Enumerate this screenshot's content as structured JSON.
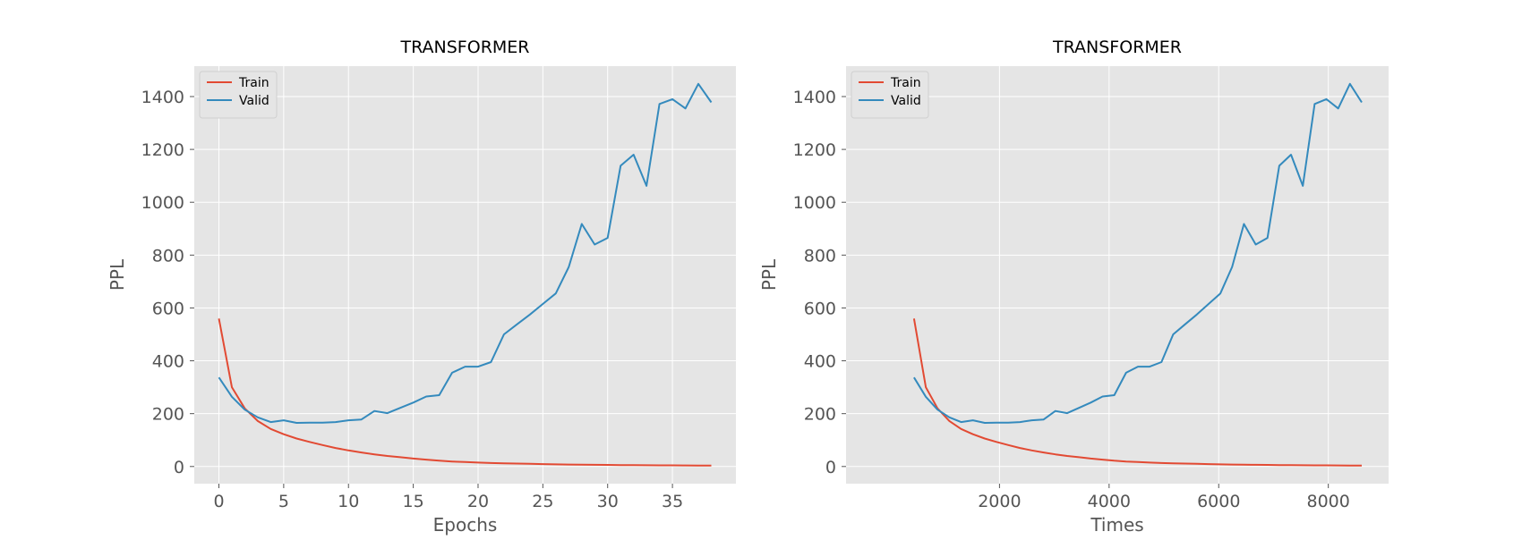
{
  "chart_data": [
    {
      "type": "line",
      "title": "TRANSFORMER",
      "xlabel": "Epochs",
      "ylabel": "PPL",
      "xlim": [
        -1.9,
        39.9
      ],
      "ylim": [
        -65,
        1515
      ],
      "xticks": [
        0,
        5,
        10,
        15,
        20,
        25,
        30,
        35
      ],
      "yticks": [
        0,
        200,
        400,
        600,
        800,
        1000,
        1200,
        1400
      ],
      "grid": true,
      "legend_position": "top-left",
      "x": [
        0,
        1,
        2,
        3,
        4,
        5,
        6,
        7,
        8,
        9,
        10,
        11,
        12,
        13,
        14,
        15,
        16,
        17,
        18,
        19,
        20,
        21,
        22,
        23,
        24,
        25,
        26,
        27,
        28,
        29,
        30,
        31,
        32,
        33,
        34,
        35,
        36,
        37,
        38
      ],
      "series": [
        {
          "name": "Train",
          "color": "#E24A33",
          "values": [
            560,
            300,
            220,
            172,
            142,
            122,
            106,
            93,
            81,
            70,
            61,
            53,
            46,
            40,
            35,
            30,
            26,
            22,
            19,
            17,
            15,
            13,
            12,
            11,
            10,
            9,
            8,
            7.5,
            7,
            6.5,
            6,
            5.5,
            5,
            4.8,
            4.5,
            4.2,
            4,
            3.8,
            3.6
          ]
        },
        {
          "name": "Valid",
          "color": "#348ABD",
          "values": [
            337,
            264,
            215,
            186,
            168,
            175,
            165,
            166,
            166,
            168,
            175,
            178,
            210,
            202,
            222,
            242,
            265,
            270,
            355,
            378,
            378,
            395,
            500,
            538,
            575,
            615,
            655,
            755,
            918,
            840,
            865,
            1138,
            1180,
            1062,
            1372,
            1390,
            1355,
            1448,
            1378
          ]
        }
      ]
    },
    {
      "type": "line",
      "title": "TRANSFORMER",
      "xlabel": "Times",
      "ylabel": "PPL",
      "xlim": [
        -800,
        9100
      ],
      "ylim": [
        -65,
        1515
      ],
      "xticks": [
        2000,
        4000,
        6000,
        8000
      ],
      "yticks": [
        0,
        200,
        400,
        600,
        800,
        1000,
        1200,
        1400
      ],
      "grid": true,
      "legend_position": "top-left",
      "x": [
        440,
        655,
        870,
        1085,
        1300,
        1515,
        1730,
        1945,
        2160,
        2375,
        2590,
        2805,
        3020,
        3235,
        3450,
        3665,
        3880,
        4095,
        4310,
        4525,
        4740,
        4955,
        5170,
        5385,
        5600,
        5815,
        6030,
        6245,
        6460,
        6675,
        6890,
        7105,
        7320,
        7535,
        7750,
        7965,
        8180,
        8395,
        8610
      ],
      "series": [
        {
          "name": "Train",
          "color": "#E24A33",
          "values": [
            560,
            300,
            220,
            172,
            142,
            122,
            106,
            93,
            81,
            70,
            61,
            53,
            46,
            40,
            35,
            30,
            26,
            22,
            19,
            17,
            15,
            13,
            12,
            11,
            10,
            9,
            8,
            7.5,
            7,
            6.5,
            6,
            5.5,
            5,
            4.8,
            4.5,
            4.2,
            4,
            3.8,
            3.6
          ]
        },
        {
          "name": "Valid",
          "color": "#348ABD",
          "values": [
            337,
            264,
            215,
            186,
            168,
            175,
            165,
            166,
            166,
            168,
            175,
            178,
            210,
            202,
            222,
            242,
            265,
            270,
            355,
            378,
            378,
            395,
            500,
            538,
            575,
            615,
            655,
            755,
            918,
            840,
            865,
            1138,
            1180,
            1062,
            1372,
            1390,
            1355,
            1448,
            1378
          ]
        }
      ]
    }
  ]
}
